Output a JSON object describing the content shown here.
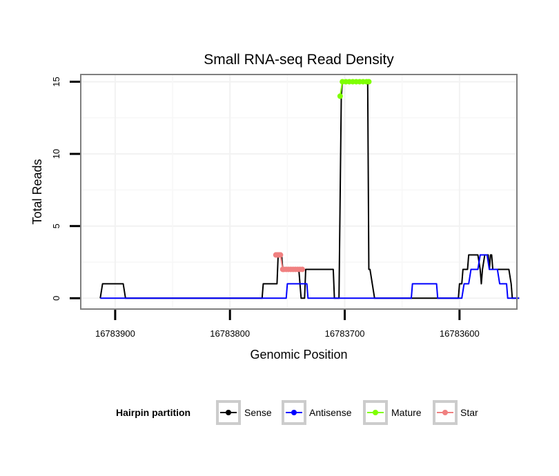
{
  "chart_data": {
    "type": "line",
    "title": "Small RNA-seq Read Density",
    "xlabel": "Genomic Position",
    "ylabel": "Total Reads",
    "xlim": [
      16783930,
      16783550
    ],
    "ylim": [
      -0.75,
      15.5
    ],
    "x_reversed": true,
    "grid": true,
    "xticks": [
      16783900,
      16783800,
      16783700,
      16783600
    ],
    "xtick_labels": [
      "16783900",
      "16783800",
      "16783700",
      "16783600"
    ],
    "yticks": [
      0,
      5,
      10,
      15
    ],
    "ytick_labels": [
      "0",
      "5",
      "10",
      "15"
    ],
    "legend": {
      "title": "Hairpin partition",
      "position": "bottom",
      "entries": [
        {
          "label": "Sense",
          "color": "#000000"
        },
        {
          "label": "Antisense",
          "color": "#0000ff"
        },
        {
          "label": "Mature",
          "color": "#7fff00"
        },
        {
          "label": "Star",
          "color": "#f08080"
        }
      ]
    },
    "series": [
      {
        "name": "Sense",
        "color": "#000000",
        "points": [
          [
            16783913,
            0
          ],
          [
            16783911,
            1
          ],
          [
            16783893,
            1
          ],
          [
            16783891,
            0
          ],
          [
            16783772,
            0
          ],
          [
            16783771,
            1
          ],
          [
            16783759,
            1
          ],
          [
            16783758,
            3
          ],
          [
            16783755,
            3
          ],
          [
            16783754,
            2
          ],
          [
            16783740,
            2
          ],
          [
            16783738,
            0
          ],
          [
            16783735,
            0
          ],
          [
            16783734,
            2
          ],
          [
            16783710,
            2
          ],
          [
            16783709,
            0
          ],
          [
            16783705,
            0
          ],
          [
            16783703,
            14
          ],
          [
            16783702,
            15
          ],
          [
            16783680,
            15
          ],
          [
            16783679,
            2
          ],
          [
            16783678,
            2
          ],
          [
            16783676,
            1
          ],
          [
            16783674,
            0
          ],
          [
            16783601,
            0
          ],
          [
            16783600,
            1
          ],
          [
            16783598,
            1
          ],
          [
            16783597,
            2
          ],
          [
            16783593,
            2
          ],
          [
            16783592,
            3
          ],
          [
            16783584,
            3
          ],
          [
            16783582,
            2
          ],
          [
            16783581,
            1
          ],
          [
            16783580,
            2
          ],
          [
            16783578,
            3
          ],
          [
            16783575,
            3
          ],
          [
            16783574,
            2
          ],
          [
            16783573,
            3
          ],
          [
            16783572,
            3
          ],
          [
            16783571,
            2
          ],
          [
            16783557,
            2
          ],
          [
            16783555,
            1
          ],
          [
            16783554,
            0
          ],
          [
            16783548,
            0
          ]
        ]
      },
      {
        "name": "Antisense",
        "color": "#0000ff",
        "points": [
          [
            16783913,
            0
          ],
          [
            16783751,
            0
          ],
          [
            16783750,
            1
          ],
          [
            16783733,
            1
          ],
          [
            16783732,
            0
          ],
          [
            16783642,
            0
          ],
          [
            16783641,
            1
          ],
          [
            16783620,
            1
          ],
          [
            16783619,
            0
          ],
          [
            16783598,
            0
          ],
          [
            16783596,
            1
          ],
          [
            16783592,
            1
          ],
          [
            16783590,
            2
          ],
          [
            16783584,
            2
          ],
          [
            16783582,
            3
          ],
          [
            16783576,
            3
          ],
          [
            16783574,
            2
          ],
          [
            16783567,
            2
          ],
          [
            16783565,
            1
          ],
          [
            16783559,
            1
          ],
          [
            16783558,
            0
          ],
          [
            16783548,
            0
          ]
        ]
      },
      {
        "name": "Star",
        "color": "#f08080",
        "markers": true,
        "points": [
          [
            16783760,
            3
          ],
          [
            16783759,
            3
          ],
          [
            16783758,
            3
          ],
          [
            16783757,
            3
          ],
          [
            16783756,
            3
          ],
          [
            16783754,
            2
          ],
          [
            16783753,
            2
          ],
          [
            16783751,
            2
          ],
          [
            16783749,
            2
          ],
          [
            16783747,
            2
          ],
          [
            16783745,
            2
          ],
          [
            16783743,
            2
          ],
          [
            16783741,
            2
          ],
          [
            16783739,
            2
          ],
          [
            16783737,
            2
          ]
        ]
      },
      {
        "name": "Mature",
        "color": "#7fff00",
        "markers": true,
        "points": [
          [
            16783704,
            14
          ],
          [
            16783702,
            15
          ],
          [
            16783699,
            15
          ],
          [
            16783696,
            15
          ],
          [
            16783693,
            15
          ],
          [
            16783690,
            15
          ],
          [
            16783687,
            15
          ],
          [
            16783684,
            15
          ],
          [
            16783681,
            15
          ],
          [
            16783679,
            15
          ]
        ]
      }
    ]
  }
}
